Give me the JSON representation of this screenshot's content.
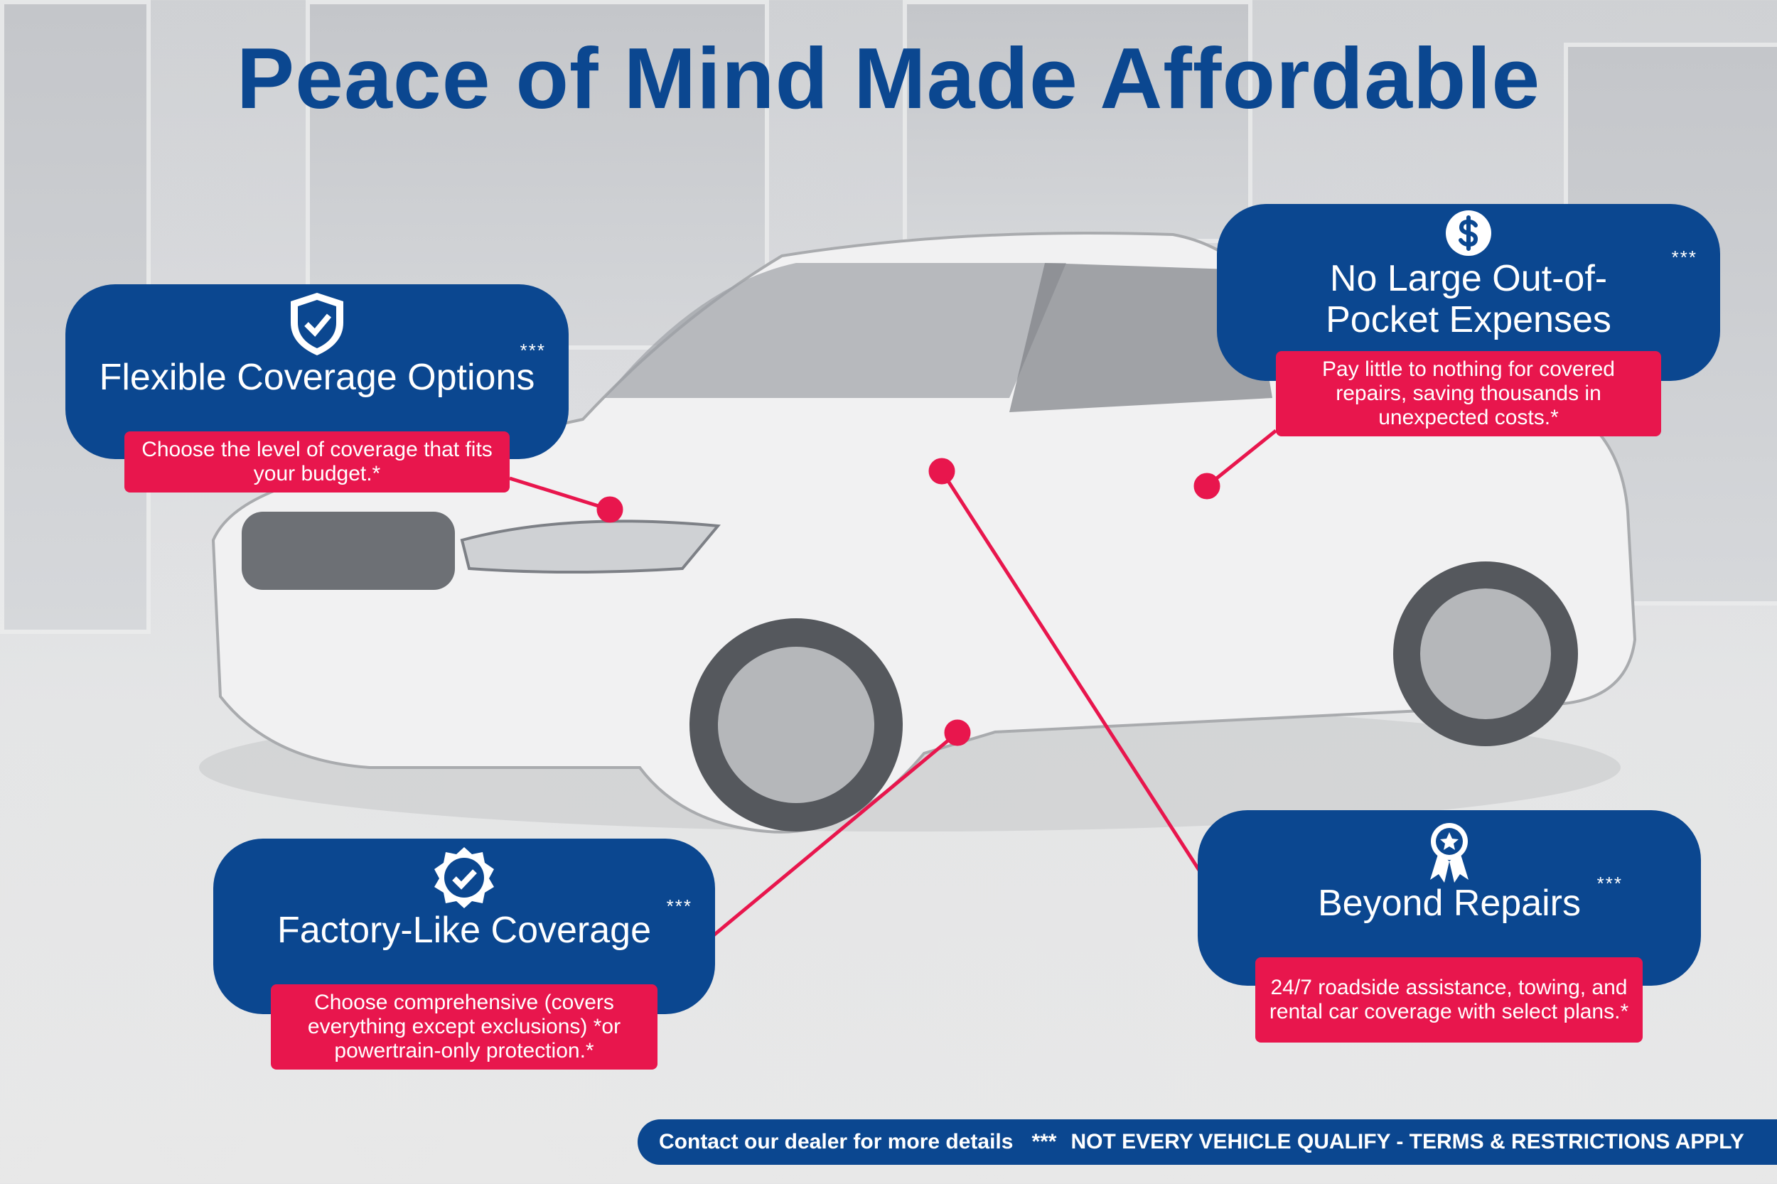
{
  "title": "Peace of Mind Made Affordable",
  "colors": {
    "brand_blue": "#0b4790",
    "accent_red": "#e8164d"
  },
  "features": [
    {
      "icon": "shield-check-icon",
      "heading": "Flexible Coverage Options",
      "marker": "***",
      "description": "Choose the level of coverage that fits your budget.*"
    },
    {
      "icon": "dollar-icon",
      "heading": "No Large Out-of-Pocket Expenses",
      "marker": "***",
      "description": "Pay little to nothing for covered repairs, saving thousands in unexpected costs.*"
    },
    {
      "icon": "badge-check-icon",
      "heading": "Factory-Like Coverage",
      "marker": "***",
      "description": "Choose comprehensive (covers everything except exclusions) *or powertrain-only protection.*"
    },
    {
      "icon": "award-ribbon-icon",
      "heading": "Beyond Repairs",
      "marker": "***",
      "description": "24/7 roadside assistance, towing, and rental car coverage with select plans.*"
    }
  ],
  "footer": {
    "contact": "Contact our dealer for more details",
    "marker": "***",
    "disclaimer": "NOT EVERY VEHICLE QUALIFY - TERMS & RESTRICTIONS APPLY"
  }
}
